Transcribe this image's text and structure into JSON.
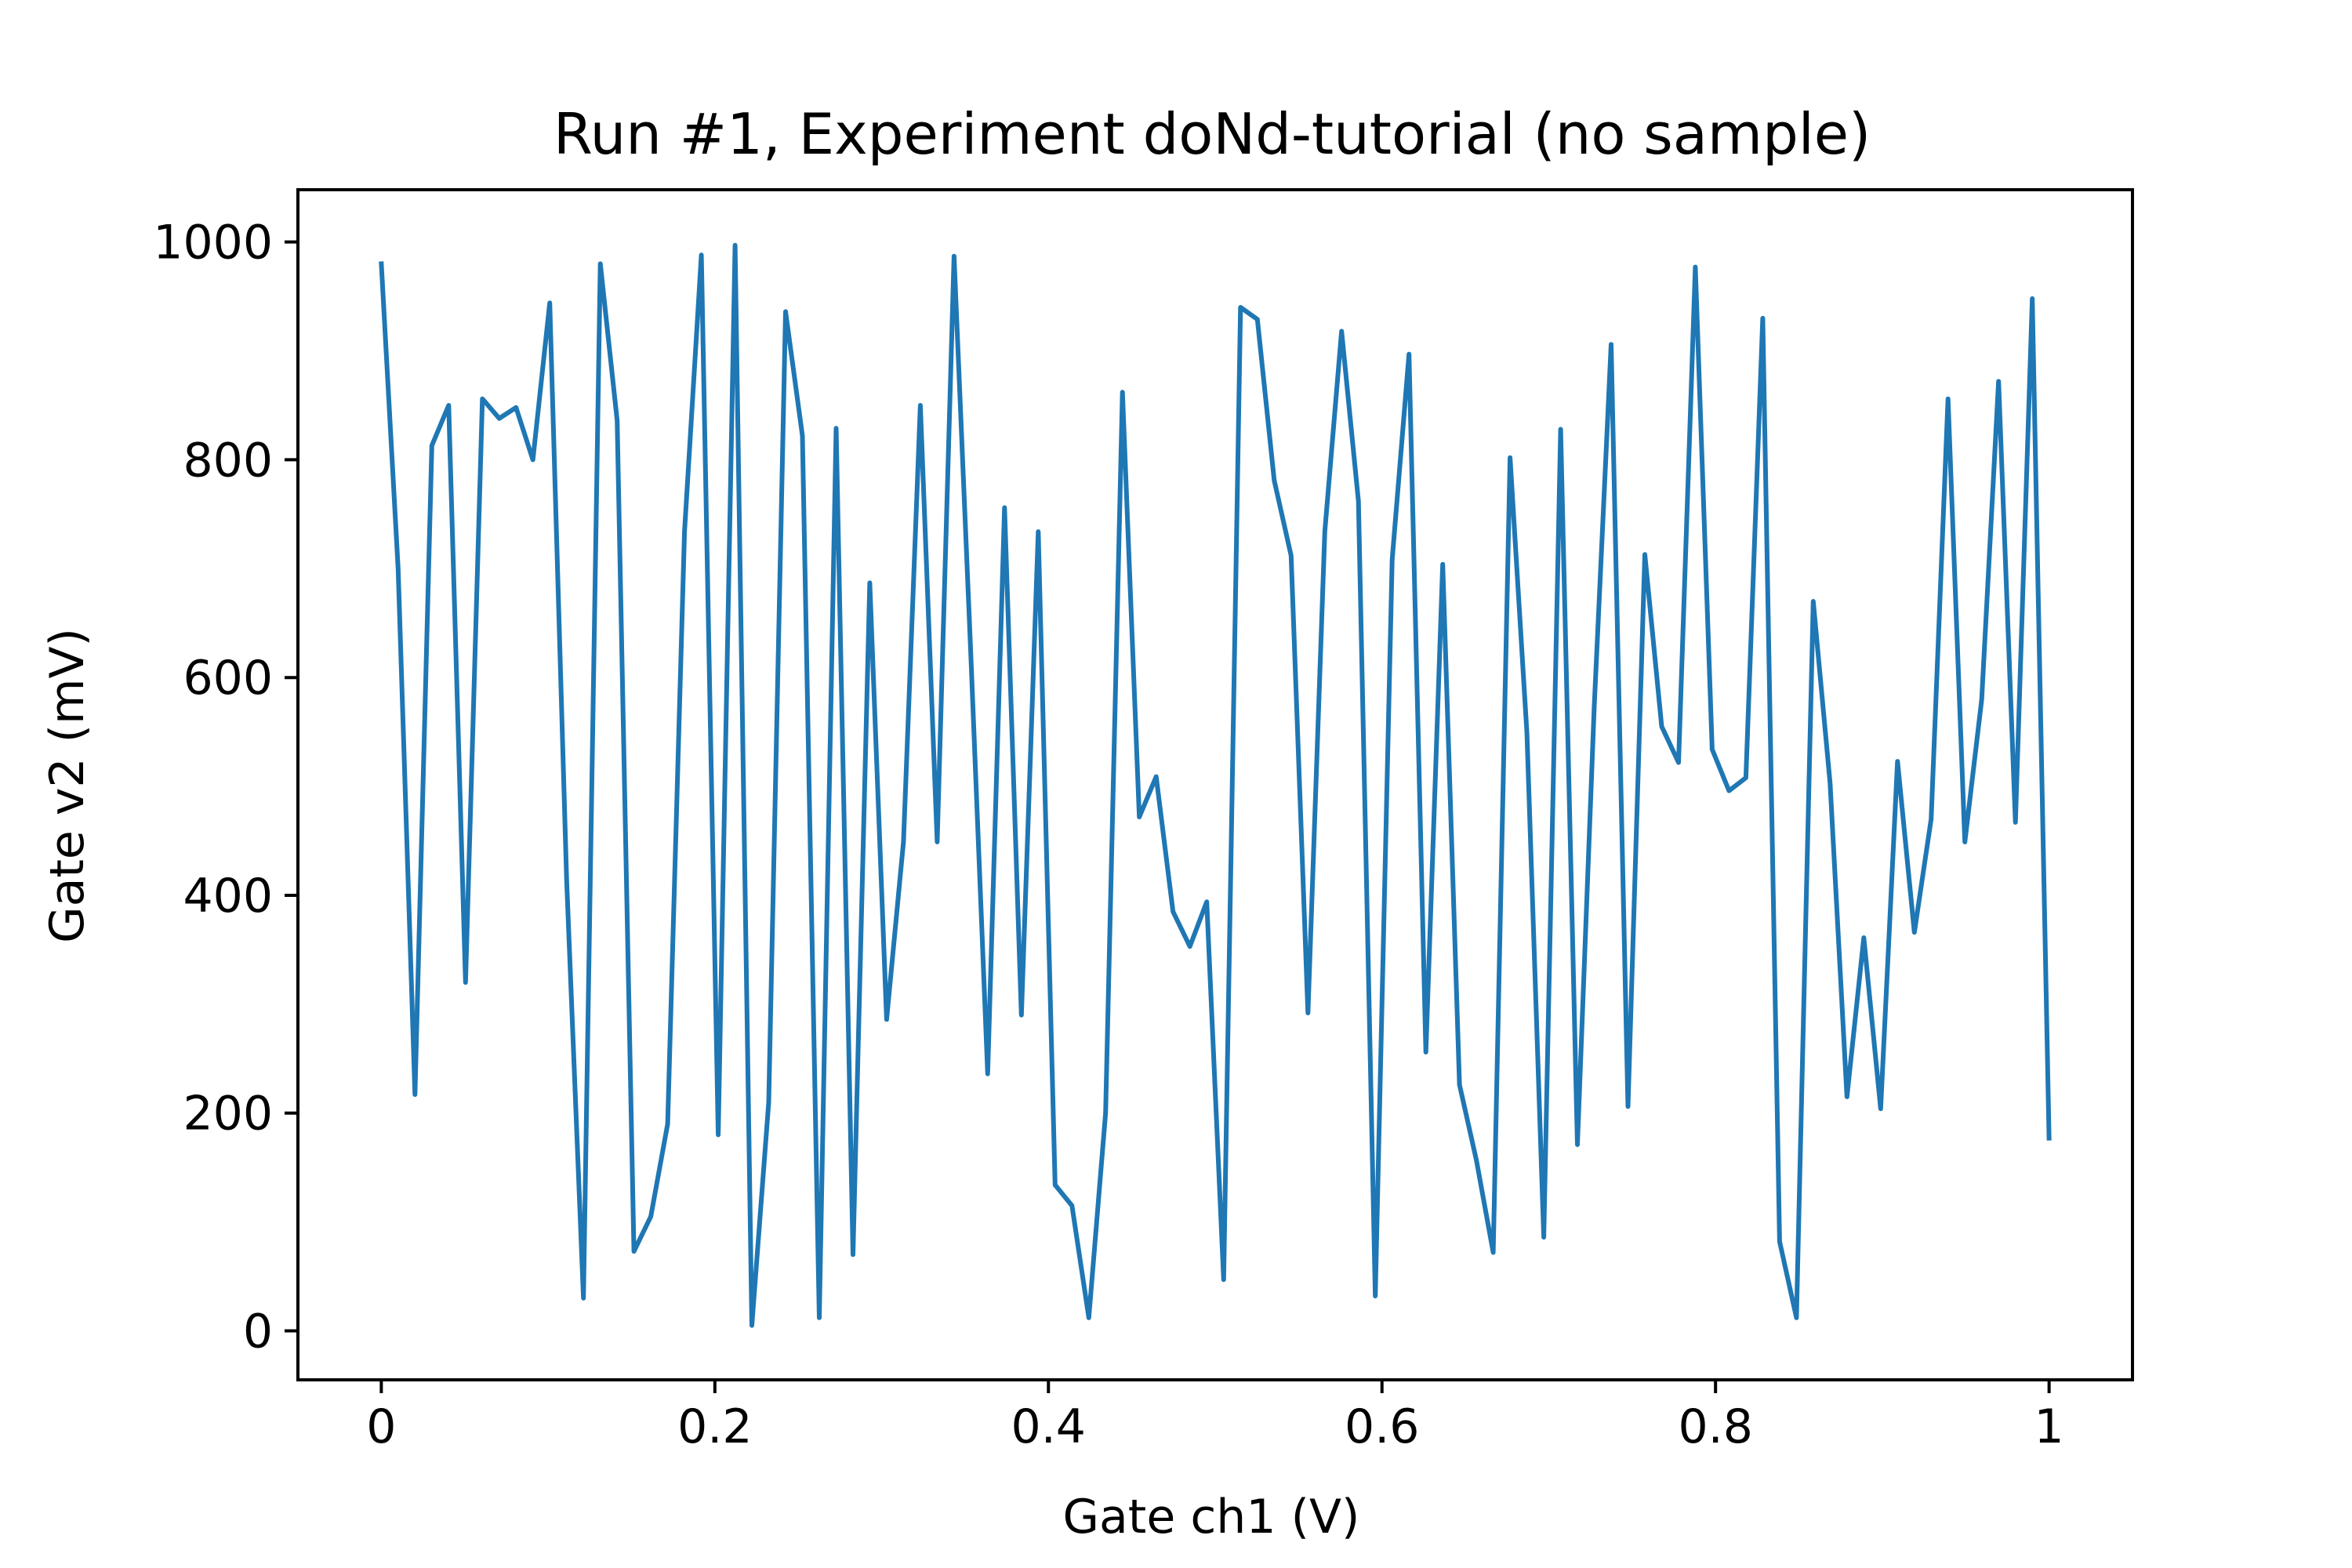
{
  "chart_data": {
    "type": "line",
    "title": "Run #1, Experiment doNd-tutorial (no sample)",
    "xlabel": "Gate ch1 (V)",
    "ylabel": "Gate v2 (mV)",
    "xlim": [
      -0.05,
      1.05
    ],
    "ylim": [
      -45,
      1048
    ],
    "xticks": [
      0,
      0.2,
      0.4,
      0.6,
      0.8,
      1
    ],
    "xtick_labels": [
      "0",
      "0.2",
      "0.4",
      "0.6",
      "0.8",
      "1"
    ],
    "yticks": [
      0,
      200,
      400,
      600,
      800,
      1000
    ],
    "ytick_labels": [
      "0",
      "200",
      "400",
      "600",
      "800",
      "1000"
    ],
    "grid": false,
    "line_color": "#1f77b4",
    "series": [
      {
        "x": [
          0.0,
          0.0101,
          0.0202,
          0.0303,
          0.0404,
          0.0505,
          0.0606,
          0.0707,
          0.0808,
          0.0909,
          0.101,
          0.1111,
          0.1212,
          0.1313,
          0.1414,
          0.1515,
          0.1616,
          0.1717,
          0.1818,
          0.1919,
          0.202,
          0.2121,
          0.2222,
          0.2323,
          0.2424,
          0.2525,
          0.2626,
          0.2727,
          0.2828,
          0.2929,
          0.303,
          0.3131,
          0.3232,
          0.3333,
          0.3434,
          0.3535,
          0.3636,
          0.3737,
          0.3838,
          0.3939,
          0.404,
          0.4141,
          0.4242,
          0.4343,
          0.4444,
          0.4545,
          0.4646,
          0.4747,
          0.4848,
          0.4949,
          0.5051,
          0.5152,
          0.5253,
          0.5354,
          0.5455,
          0.5556,
          0.5657,
          0.5758,
          0.5859,
          0.596,
          0.6061,
          0.6162,
          0.6263,
          0.6364,
          0.6465,
          0.6566,
          0.6667,
          0.6768,
          0.6869,
          0.697,
          0.7071,
          0.7172,
          0.7273,
          0.7374,
          0.7475,
          0.7576,
          0.7677,
          0.7778,
          0.7879,
          0.798,
          0.8081,
          0.8182,
          0.8283,
          0.8384,
          0.8485,
          0.8586,
          0.8687,
          0.8788,
          0.8889,
          0.899,
          0.9091,
          0.9192,
          0.9293,
          0.9394,
          0.9495,
          0.9596,
          0.9697,
          0.9798,
          0.9899,
          1.0
        ],
        "y": [
          980,
          700,
          217,
          813,
          850,
          320,
          856,
          838,
          848,
          800,
          944,
          415,
          30,
          980,
          836,
          73,
          105,
          190,
          734,
          988,
          180,
          997,
          5,
          210,
          936,
          822,
          12,
          829,
          70,
          687,
          286,
          449,
          850,
          449,
          987,
          619,
          236,
          756,
          290,
          734,
          134,
          115,
          12,
          200,
          862,
          472,
          509,
          385,
          353,
          394,
          47,
          940,
          929,
          781,
          712,
          292,
          734,
          918,
          762,
          32,
          708,
          897,
          256,
          704,
          226,
          157,
          72,
          802,
          549,
          86,
          828,
          171,
          574,
          906,
          206,
          713,
          555,
          522,
          977,
          534,
          496,
          508,
          930,
          82,
          12,
          670,
          503,
          215,
          361,
          204,
          523,
          366,
          470,
          856,
          449,
          580,
          872,
          467,
          948,
          177
        ]
      }
    ]
  }
}
